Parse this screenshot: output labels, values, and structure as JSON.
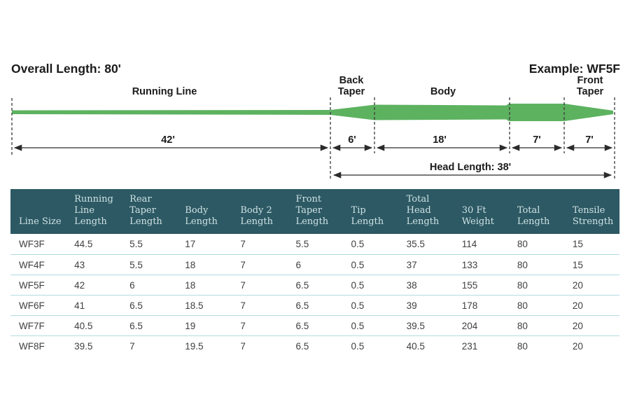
{
  "diagram": {
    "overall_length": "Overall Length: 80'",
    "example": "Example: WF5F",
    "labels": {
      "running_line": "Running Line",
      "back_taper_line1": "Back",
      "back_taper_line2": "Taper",
      "body": "Body",
      "front_taper_line1": "Front",
      "front_taper_line2": "Taper"
    },
    "measurements": [
      {
        "section": "running-line",
        "label": "42'"
      },
      {
        "section": "back-taper",
        "label": "6'"
      },
      {
        "section": "body",
        "label": "18'"
      },
      {
        "section": "body-2",
        "label": "7'"
      },
      {
        "section": "front-taper",
        "label": "7'"
      }
    ],
    "head_length": "Head Length: 38'",
    "colors": {
      "line_green": "#5db260",
      "ink": "#1b1b1b"
    }
  },
  "table": {
    "columns": [
      "Line Size",
      "Running Line Length",
      "Rear Taper Length",
      "Body Length",
      "Body 2 Length",
      "Front Taper Length",
      "Tip Length",
      "Total Head Length",
      "30 Ft Weight",
      "Total Length",
      "Tensile Strength"
    ],
    "rows": [
      [
        "WF3F",
        "44.5",
        "5.5",
        "17",
        "7",
        "5.5",
        "0.5",
        "35.5",
        "114",
        "80",
        "15"
      ],
      [
        "WF4F",
        "43",
        "5.5",
        "18",
        "7",
        "6",
        "0.5",
        "37",
        "133",
        "80",
        "15"
      ],
      [
        "WF5F",
        "42",
        "6",
        "18",
        "7",
        "6.5",
        "0.5",
        "38",
        "155",
        "80",
        "20"
      ],
      [
        "WF6F",
        "41",
        "6.5",
        "18.5",
        "7",
        "6.5",
        "0.5",
        "39",
        "178",
        "80",
        "20"
      ],
      [
        "WF7F",
        "40.5",
        "6.5",
        "19",
        "7",
        "6.5",
        "0.5",
        "39.5",
        "204",
        "80",
        "20"
      ],
      [
        "WF8F",
        "39.5",
        "7",
        "19.5",
        "7",
        "6.5",
        "0.5",
        "40.5",
        "231",
        "80",
        "20"
      ]
    ],
    "colors": {
      "header_bg": "#2c5963",
      "header_text": "#cfe2e5",
      "row_text": "#3f3f3f",
      "divider": "#b3dbe2"
    }
  }
}
